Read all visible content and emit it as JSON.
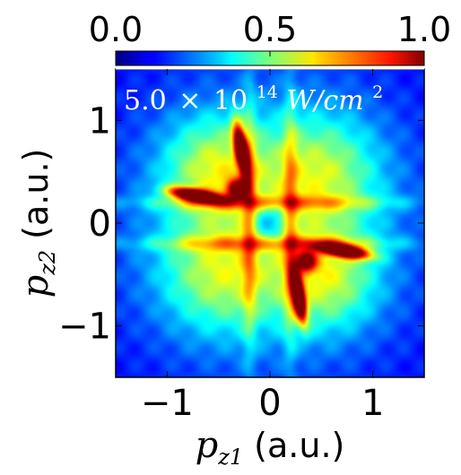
{
  "chart_data": {
    "type": "heatmap",
    "colormap": "jet",
    "xlabel": {
      "symbol": "p",
      "sub": "z1",
      "unit": "(a.u.)"
    },
    "ylabel": {
      "symbol": "p",
      "sub": "z2",
      "unit": "(a.u.)"
    },
    "xlim": [
      -1.5,
      1.5
    ],
    "ylim": [
      -1.5,
      1.5
    ],
    "x_ticks": [
      -1,
      0,
      1
    ],
    "x_tick_labels": [
      "−1",
      "0",
      "1"
    ],
    "y_ticks": [
      -1,
      0,
      1
    ],
    "y_tick_labels": [
      "−1",
      "0",
      "1"
    ],
    "colorbar": {
      "range": [
        0.0,
        1.0
      ],
      "ticks": [
        0.0,
        0.5,
        1.0
      ],
      "tick_labels": [
        "0.0",
        "0.5",
        "1.0"
      ],
      "position": "top"
    },
    "annotation": {
      "mantissa": "5.0",
      "times": "×",
      "base": "10",
      "exponent": "14",
      "unit": "W/cm",
      "unit_exp": "2"
    },
    "background_level": 0.12,
    "features": [
      {
        "x": -0.28,
        "y": 0.72,
        "sx": 0.05,
        "sy": 0.17,
        "rho": -0.55,
        "amp": 0.95
      },
      {
        "x": -0.72,
        "y": 0.27,
        "sx": 0.17,
        "sy": 0.05,
        "rho": -0.55,
        "amp": 0.95
      },
      {
        "x": 0.28,
        "y": -0.72,
        "sx": 0.05,
        "sy": 0.17,
        "rho": -0.55,
        "amp": 0.95
      },
      {
        "x": 0.72,
        "y": -0.27,
        "sx": 0.17,
        "sy": 0.05,
        "rho": -0.55,
        "amp": 0.95
      },
      {
        "x": -0.32,
        "y": 0.33,
        "sx": 0.07,
        "sy": 0.07,
        "rho": 0.0,
        "amp": 0.55
      },
      {
        "x": 0.35,
        "y": -0.37,
        "sx": 0.07,
        "sy": 0.07,
        "rho": 0.0,
        "amp": 0.55
      },
      {
        "x": -0.55,
        "y": 0.55,
        "sx": 0.35,
        "sy": 0.35,
        "rho": 0.0,
        "amp": 0.3
      },
      {
        "x": 0.55,
        "y": -0.55,
        "sx": 0.35,
        "sy": 0.35,
        "rho": 0.0,
        "amp": 0.3
      },
      {
        "x": 0.5,
        "y": 0.5,
        "sx": 0.4,
        "sy": 0.4,
        "rho": 0.0,
        "amp": 0.28
      },
      {
        "x": -0.5,
        "y": -0.5,
        "sx": 0.4,
        "sy": 0.4,
        "rho": 0.0,
        "amp": 0.28
      },
      {
        "x": 0.0,
        "y": 0.2,
        "sx": 0.9,
        "sy": 0.05,
        "rho": 0.0,
        "amp": 0.22
      },
      {
        "x": 0.0,
        "y": -0.2,
        "sx": 0.9,
        "sy": 0.05,
        "rho": 0.0,
        "amp": 0.22
      },
      {
        "x": 0.2,
        "y": 0.0,
        "sx": 0.05,
        "sy": 0.9,
        "rho": 0.0,
        "amp": 0.22
      },
      {
        "x": -0.2,
        "y": 0.0,
        "sx": 0.05,
        "sy": 0.9,
        "rho": 0.0,
        "amp": 0.22
      },
      {
        "x": 0.0,
        "y": 0.0,
        "sx": 0.12,
        "sy": 0.12,
        "rho": 0.0,
        "amp": -0.22
      }
    ]
  }
}
